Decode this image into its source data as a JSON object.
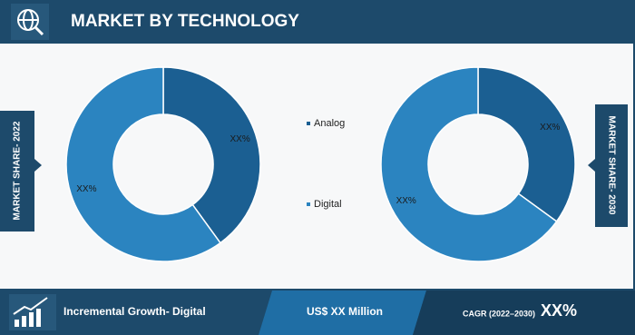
{
  "header": {
    "title": "MARKET BY TECHNOLOGY"
  },
  "chart_data": [
    {
      "type": "pie",
      "title": "MARKET SHARE- 2022",
      "categories": [
        "Analog",
        "Digital"
      ],
      "values": [
        40,
        60
      ],
      "colors": [
        "#1b5f92",
        "#2b84c0"
      ],
      "annotations": [
        "XX%",
        "XX%"
      ]
    },
    {
      "type": "pie",
      "title": "MARKET SHARE- 2030",
      "categories": [
        "Analog",
        "Digital"
      ],
      "values": [
        35,
        65
      ],
      "colors": [
        "#1b5f92",
        "#2b84c0"
      ],
      "annotations": [
        "XX%",
        "XX%"
      ]
    }
  ],
  "footer": {
    "growth": "Incremental Growth- Digital",
    "market_size": "US$ XX Million",
    "cagr_label": "CAGR (2022–2030)",
    "cagr_value": "XX%"
  }
}
